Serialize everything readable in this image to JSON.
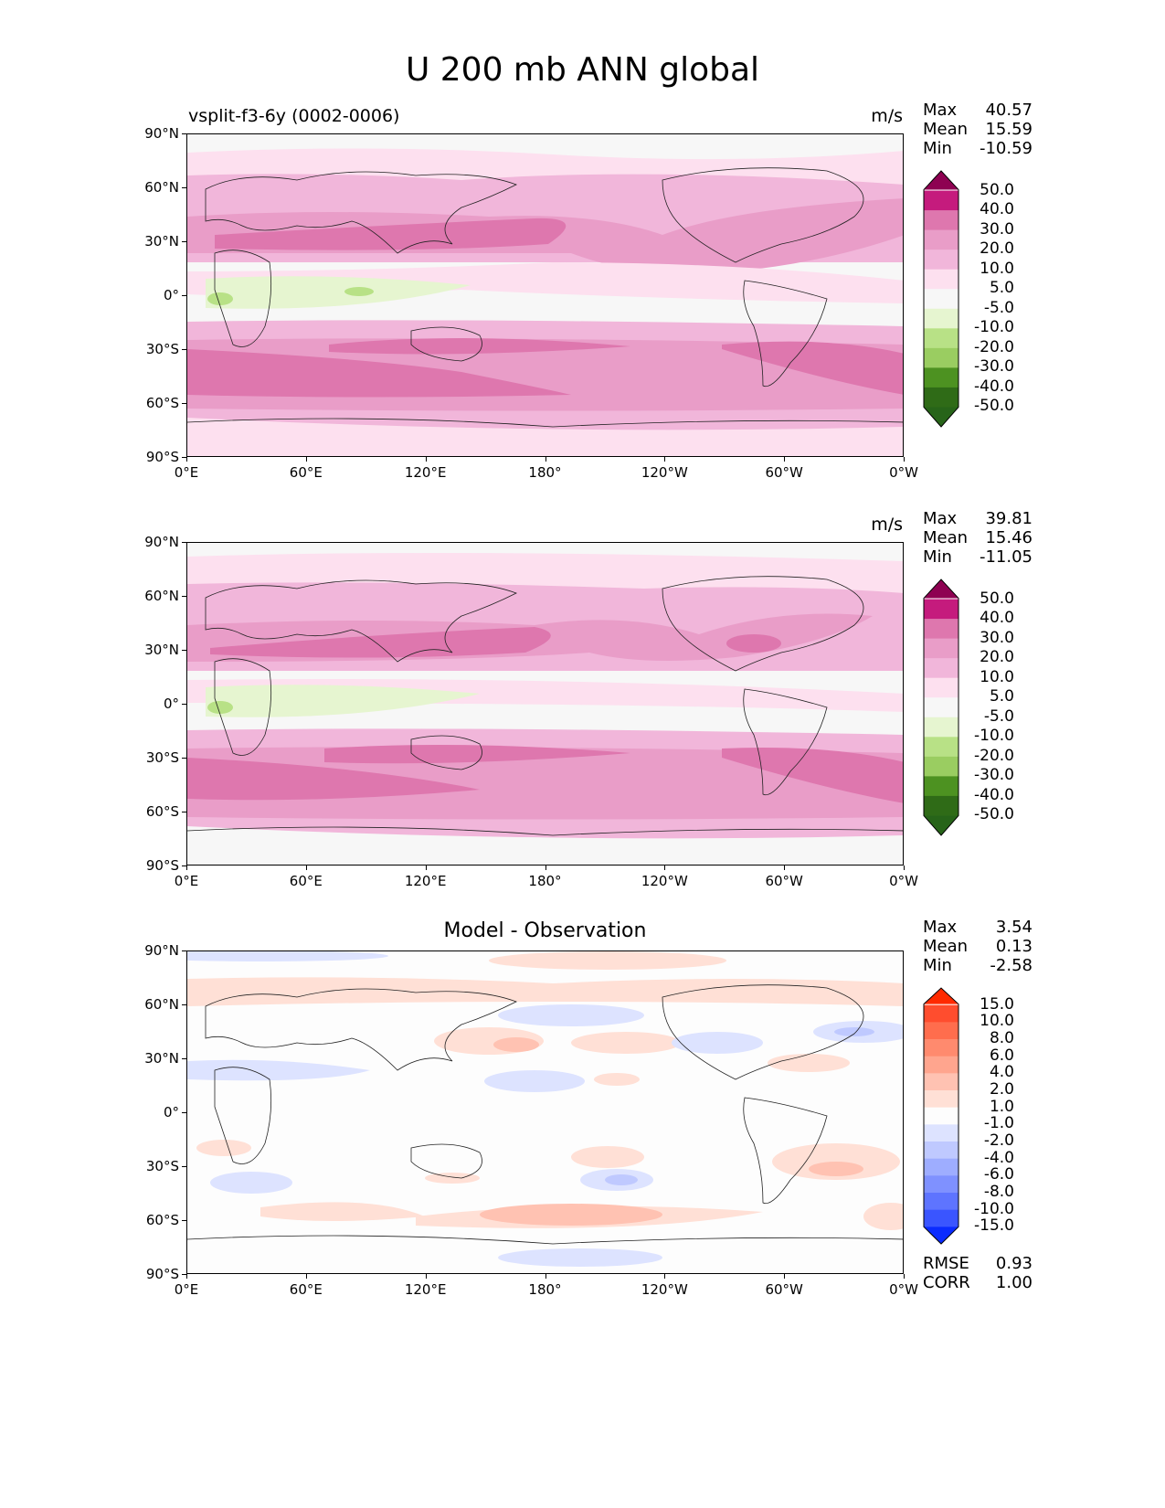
{
  "title": "U 200 mb ANN global",
  "axes": {
    "lat_ticks": [
      "90°N",
      "60°N",
      "30°N",
      "0°",
      "30°S",
      "60°S",
      "90°S"
    ],
    "lon_ticks": [
      "0°E",
      "60°E",
      "120°E",
      "180°",
      "120°W",
      "60°W",
      "0°W"
    ]
  },
  "panels": [
    {
      "id": "test",
      "left_label": "vsplit-f3-6y (0002-0006)",
      "center_label": "",
      "units": "m/s",
      "stats": {
        "max_label": "Max",
        "max": "40.57",
        "mean_label": "Mean",
        "mean": "15.59",
        "min_label": "Min",
        "min": "-10.59"
      },
      "colorbar": {
        "labels": [
          "50.0",
          "40.0",
          "30.0",
          "20.0",
          "10.0",
          "5.0",
          "-5.0",
          "-10.0",
          "-20.0",
          "-30.0",
          "-40.0",
          "-50.0"
        ],
        "colors": [
          "#8e0152",
          "#c51b7d",
          "#de77ae",
          "#e99dc8",
          "#f1b6da",
          "#fde0ef",
          "#f7f7f7",
          "#e6f5d0",
          "#b8e186",
          "#9acd61",
          "#4d9221",
          "#2f6b17",
          "#276419"
        ]
      },
      "field": "model"
    },
    {
      "id": "ref",
      "left_label": "",
      "center_label": "",
      "units": "m/s",
      "stats": {
        "max_label": "Max",
        "max": "39.81",
        "mean_label": "Mean",
        "mean": "15.46",
        "min_label": "Min",
        "min": "-11.05"
      },
      "colorbar": {
        "labels": [
          "50.0",
          "40.0",
          "30.0",
          "20.0",
          "10.0",
          "5.0",
          "-5.0",
          "-10.0",
          "-20.0",
          "-30.0",
          "-40.0",
          "-50.0"
        ],
        "colors": [
          "#8e0152",
          "#c51b7d",
          "#de77ae",
          "#e99dc8",
          "#f1b6da",
          "#fde0ef",
          "#f7f7f7",
          "#e6f5d0",
          "#b8e186",
          "#9acd61",
          "#4d9221",
          "#2f6b17",
          "#276419"
        ]
      },
      "field": "obs"
    },
    {
      "id": "diff",
      "left_label": "",
      "center_label": "Model - Observation",
      "units": "",
      "stats": {
        "max_label": "Max",
        "max": "3.54",
        "mean_label": "Mean",
        "mean": "0.13",
        "min_label": "Min",
        "min": "-2.58"
      },
      "colorbar": {
        "labels": [
          "15.0",
          "10.0",
          "8.0",
          "6.0",
          "4.0",
          "2.0",
          "1.0",
          "-1.0",
          "-2.0",
          "-4.0",
          "-6.0",
          "-8.0",
          "-10.0",
          "-15.0"
        ],
        "colors": [
          "#ff2a00",
          "#ff4d2e",
          "#ff6d4d",
          "#ff8a6e",
          "#ffa58e",
          "#ffc2b2",
          "#ffe0d6",
          "#fdfdfd",
          "#dde3ff",
          "#bfc9ff",
          "#9eadff",
          "#7f91ff",
          "#5e74ff",
          "#3a55ff",
          "#0a2bff"
        ]
      },
      "extra_stats": {
        "rmse_label": "RMSE",
        "rmse": "0.93",
        "corr_label": "CORR",
        "corr": "1.00"
      },
      "field": "diff"
    }
  ]
}
